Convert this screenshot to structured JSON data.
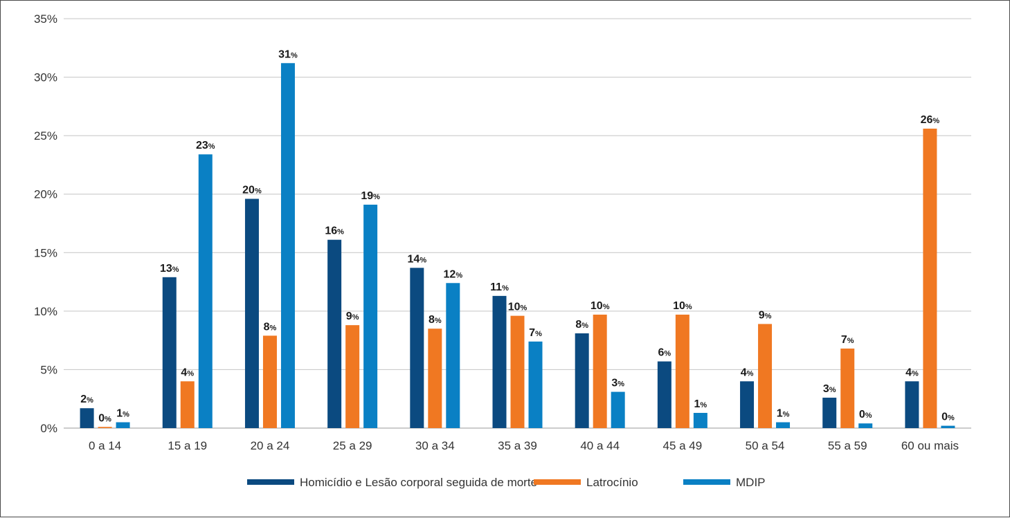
{
  "chart_data": {
    "type": "bar",
    "title": "",
    "xlabel": "",
    "ylabel": "",
    "ylim": [
      0,
      35
    ],
    "yticks": [
      0,
      5,
      10,
      15,
      20,
      25,
      30,
      35
    ],
    "ytick_labels": [
      "0%",
      "5%",
      "10%",
      "15%",
      "20%",
      "25%",
      "30%",
      "35%"
    ],
    "grid": true,
    "legend_position": "bottom",
    "categories": [
      "0 a 14",
      "15 a 19",
      "20 a 24",
      "25 a 29",
      "30 a 34",
      "35 a 39",
      "40 a 44",
      "45 a 49",
      "50 a 54",
      "55 a 59",
      "60 ou mais"
    ],
    "series": [
      {
        "name": "Homicídio e Lesão corporal seguida de morte",
        "color": "#0b4a80",
        "values": [
          1.7,
          12.9,
          19.6,
          16.1,
          13.7,
          11.3,
          8.1,
          5.7,
          4.0,
          2.6,
          4.0
        ],
        "labels": [
          "2",
          "13",
          "20",
          "16",
          "14",
          "11",
          "8",
          "6",
          "4",
          "3",
          "4"
        ]
      },
      {
        "name": "Latrocínio",
        "color": "#f07822",
        "values": [
          0.1,
          4.0,
          7.9,
          8.8,
          8.5,
          9.6,
          9.7,
          9.7,
          8.9,
          6.8,
          25.6
        ],
        "labels": [
          "0",
          "4",
          "8",
          "9",
          "8",
          "10",
          "10",
          "10",
          "9",
          "7",
          "26"
        ]
      },
      {
        "name": "MDIP",
        "color": "#0a80c4",
        "values": [
          0.5,
          23.4,
          31.2,
          19.1,
          12.4,
          7.4,
          3.1,
          1.3,
          0.5,
          0.4,
          0.2
        ],
        "labels": [
          "1",
          "23",
          "31",
          "19",
          "12",
          "7",
          "3",
          "1",
          "1",
          "0",
          "0"
        ]
      }
    ],
    "data_label_suffix": "%"
  }
}
